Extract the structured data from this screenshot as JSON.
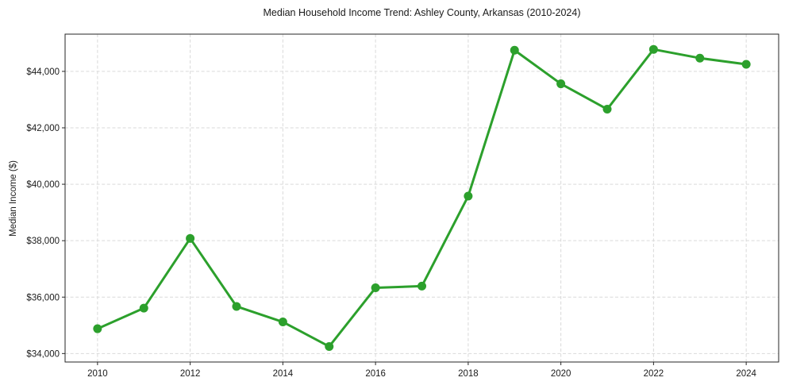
{
  "chart_data": {
    "type": "line",
    "title": "Median Household Income Trend: Ashley County, Arkansas (2010-2024)",
    "ylabel": "Median Income ($)",
    "xlabel": "",
    "x": [
      2010,
      2011,
      2012,
      2013,
      2014,
      2015,
      2016,
      2017,
      2018,
      2019,
      2020,
      2021,
      2022,
      2023,
      2024
    ],
    "values": [
      34880,
      35610,
      38080,
      35670,
      35120,
      34250,
      36330,
      36390,
      39580,
      44750,
      43560,
      42660,
      44780,
      44470,
      44250
    ],
    "xlim": [
      2009.3,
      2024.7
    ],
    "ylim": [
      33700,
      45320
    ],
    "xticks": {
      "values": [
        2010,
        2012,
        2014,
        2016,
        2018,
        2020,
        2022,
        2024
      ],
      "labels": [
        "2010",
        "2012",
        "2014",
        "2016",
        "2018",
        "2020",
        "2022",
        "2024"
      ]
    },
    "yticks": {
      "values": [
        34000,
        36000,
        38000,
        40000,
        42000,
        44000
      ],
      "labels": [
        "$34,000",
        "$36,000",
        "$38,000",
        "$40,000",
        "$42,000",
        "$44,000"
      ]
    },
    "grid": true,
    "grid_style": "dashed",
    "legend": "none",
    "marker": "circle",
    "styles": {
      "line_color": "#2ca02c",
      "grid_color": "#d9d9d9",
      "axis_color": "#262626",
      "text_color": "#1a1a1a",
      "background": "#ffffff",
      "line_width": 3,
      "marker_size": 5.5,
      "tick_font_size": 11.5
    }
  }
}
